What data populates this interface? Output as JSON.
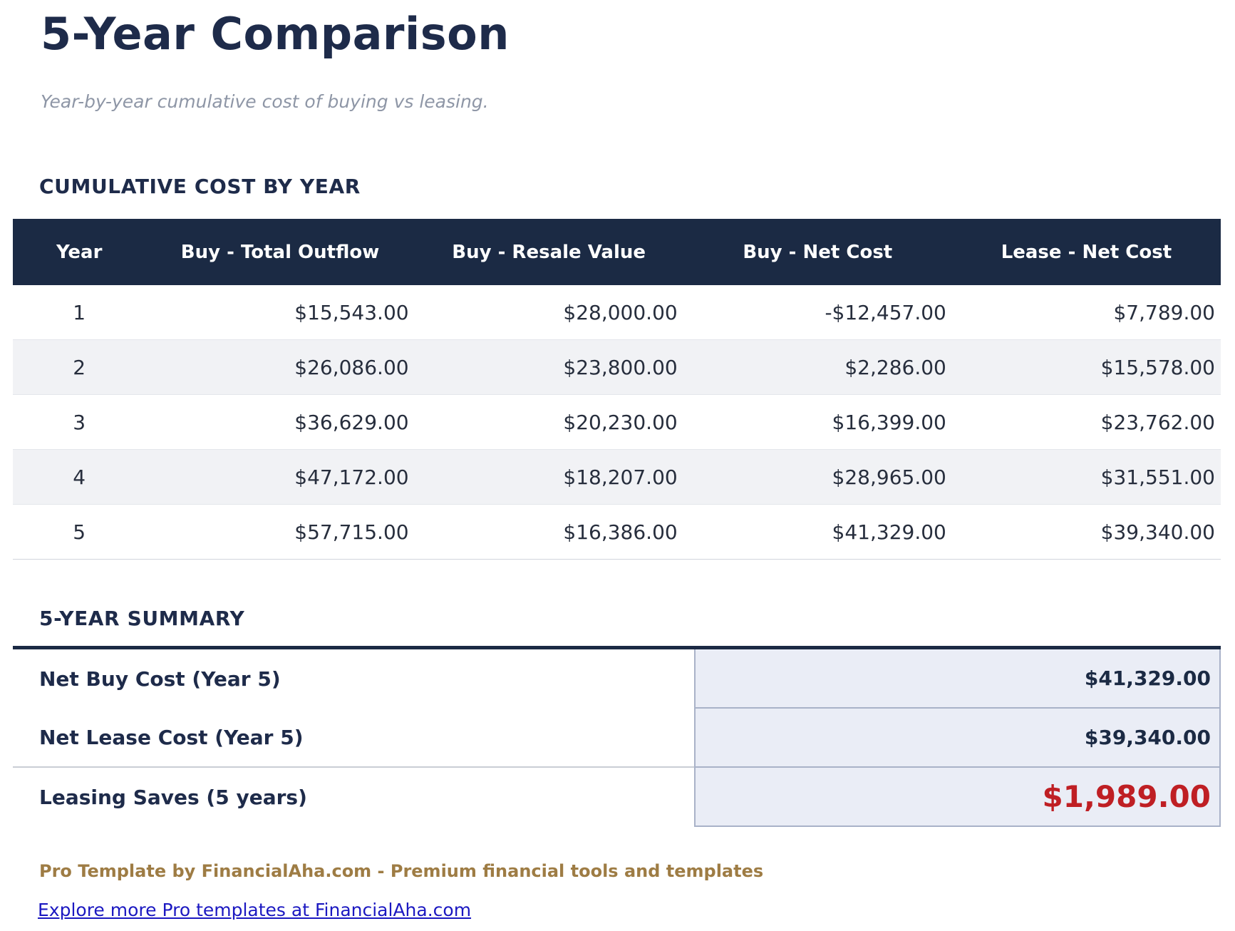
{
  "page": {
    "title": "5-Year Comparison",
    "subtitle": "Year-by-year cumulative cost of buying vs leasing."
  },
  "cumulative_table": {
    "heading": "CUMULATIVE COST BY YEAR",
    "columns": [
      "Year",
      "Buy - Total Outflow",
      "Buy - Resale Value",
      "Buy - Net Cost",
      "Lease - Net Cost"
    ],
    "rows": [
      [
        "1",
        "$15,543.00",
        "$28,000.00",
        "-$12,457.00",
        "$7,789.00"
      ],
      [
        "2",
        "$26,086.00",
        "$23,800.00",
        "$2,286.00",
        "$15,578.00"
      ],
      [
        "3",
        "$36,629.00",
        "$20,230.00",
        "$16,399.00",
        "$23,762.00"
      ],
      [
        "4",
        "$47,172.00",
        "$18,207.00",
        "$28,965.00",
        "$31,551.00"
      ],
      [
        "5",
        "$57,715.00",
        "$16,386.00",
        "$41,329.00",
        "$39,340.00"
      ]
    ]
  },
  "summary": {
    "heading": "5-YEAR SUMMARY",
    "rows": [
      {
        "label": "Net Buy Cost (Year 5)",
        "value": "$41,329.00"
      },
      {
        "label": "Net Lease Cost (Year 5)",
        "value": "$39,340.00"
      },
      {
        "label": "Leasing Saves (5 years)",
        "value": "$1,989.00"
      }
    ]
  },
  "footer": {
    "branding": "Pro Template by FinancialAha.com - Premium financial tools and templates",
    "link_text": "Explore more Pro templates at FinancialAha.com"
  },
  "colors": {
    "navy": "#1b2a44",
    "red_highlight": "#bf1f24",
    "gold_brand": "#9e7c44",
    "link_blue": "#1b18c1",
    "row_alt": "#f1f2f5",
    "summary_cell_bg": "#eaedf6"
  }
}
